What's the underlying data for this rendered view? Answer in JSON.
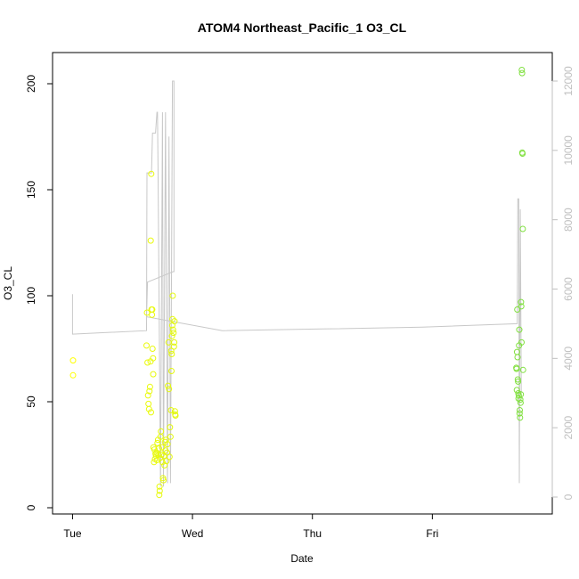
{
  "chart_data": {
    "type": "scatter",
    "title": "ATOM4 Northeast_Pacific_1 O3_CL",
    "xlabel": "Date",
    "ylabel": "O3_CL",
    "x_ticks": [
      "Tue",
      "Wed",
      "Thu",
      "Fri"
    ],
    "x_tick_values_hours": [
      0,
      24,
      48,
      72
    ],
    "xlim_hours": [
      -4,
      96
    ],
    "ylim": [
      0,
      206
    ],
    "y_ticks": [
      0,
      50,
      100,
      150,
      200
    ],
    "y2lim": [
      0,
      12000
    ],
    "y2_ticks": [
      0,
      2000,
      4000,
      6000,
      8000,
      10000,
      12000
    ],
    "grid": false,
    "legend": "none",
    "colors": {
      "points_start": "#ffff00",
      "points_end": "#80e040",
      "line": "#c8c8c8",
      "axis": "#000000",
      "right_axis": "#c0c0c0"
    },
    "series": [
      {
        "type": "scatter",
        "axis": "left",
        "points": [
          [
            0.1,
            69.5
          ],
          [
            0.1,
            62.5
          ],
          [
            14.8,
            76.5
          ],
          [
            14.9,
            92.0
          ],
          [
            15.0,
            68.5
          ],
          [
            15.1,
            53.0
          ],
          [
            15.2,
            49.0
          ],
          [
            15.3,
            46.5
          ],
          [
            15.4,
            55.0
          ],
          [
            15.5,
            57.0
          ],
          [
            15.6,
            69.0
          ],
          [
            15.65,
            126.0
          ],
          [
            15.7,
            45.0
          ],
          [
            15.75,
            157.5
          ],
          [
            15.8,
            93.5
          ],
          [
            15.9,
            91.0
          ],
          [
            15.95,
            93.5
          ],
          [
            16.0,
            75.0
          ],
          [
            16.1,
            70.5
          ],
          [
            16.15,
            63.0
          ],
          [
            16.2,
            28.5
          ],
          [
            16.3,
            21.5
          ],
          [
            16.4,
            27.5
          ],
          [
            16.5,
            23.0
          ],
          [
            16.6,
            25.5
          ],
          [
            16.7,
            24.5
          ],
          [
            16.8,
            26.0
          ],
          [
            16.9,
            22.5
          ],
          [
            17.0,
            30.5
          ],
          [
            17.1,
            32.0
          ],
          [
            17.2,
            25.0
          ],
          [
            17.3,
            28.0
          ],
          [
            17.35,
            6.0
          ],
          [
            17.4,
            10.0
          ],
          [
            17.45,
            8.0
          ],
          [
            17.5,
            23.5
          ],
          [
            17.6,
            33.5
          ],
          [
            17.7,
            36.0
          ],
          [
            17.8,
            25.0
          ],
          [
            17.9,
            28.5
          ],
          [
            18.0,
            21.5
          ],
          [
            18.1,
            14.0
          ],
          [
            18.2,
            13.0
          ],
          [
            18.3,
            24.5
          ],
          [
            18.4,
            20.0
          ],
          [
            18.5,
            31.0
          ],
          [
            18.6,
            27.0
          ],
          [
            18.7,
            32.0
          ],
          [
            18.8,
            22.0
          ],
          [
            18.9,
            26.0
          ],
          [
            19.0,
            30.0
          ],
          [
            19.1,
            57.5
          ],
          [
            19.2,
            78.0
          ],
          [
            19.3,
            56.0
          ],
          [
            19.4,
            24.0
          ],
          [
            19.5,
            38.0
          ],
          [
            19.6,
            33.5
          ],
          [
            19.7,
            46.0
          ],
          [
            19.75,
            74.0
          ],
          [
            19.8,
            64.5
          ],
          [
            19.85,
            72.5
          ],
          [
            19.9,
            81.0
          ],
          [
            19.95,
            86.0
          ],
          [
            20.0,
            89.0
          ],
          [
            20.05,
            100.0
          ],
          [
            20.1,
            84.0
          ],
          [
            20.2,
            82.5
          ],
          [
            20.3,
            76.0
          ],
          [
            20.35,
            78.0
          ],
          [
            20.4,
            88.0
          ],
          [
            20.5,
            45.5
          ],
          [
            20.55,
            44.0
          ],
          [
            20.6,
            43.5
          ],
          [
            88.8,
            66.0
          ],
          [
            88.85,
            65.5
          ],
          [
            88.9,
            55.5
          ],
          [
            88.95,
            73.5
          ],
          [
            89.0,
            93.5
          ],
          [
            89.05,
            71.0
          ],
          [
            89.1,
            60.5
          ],
          [
            89.15,
            59.5
          ],
          [
            89.2,
            54.0
          ],
          [
            89.25,
            51.5
          ],
          [
            89.3,
            53.0
          ],
          [
            89.35,
            76.5
          ],
          [
            89.4,
            84.0
          ],
          [
            89.45,
            44.5
          ],
          [
            89.5,
            46.0
          ],
          [
            89.55,
            42.5
          ],
          [
            89.6,
            51.0
          ],
          [
            89.65,
            49.5
          ],
          [
            89.7,
            53.5
          ],
          [
            89.75,
            97.0
          ],
          [
            89.8,
            95.0
          ],
          [
            89.85,
            78.0
          ],
          [
            89.9,
            206.5
          ],
          [
            89.95,
            205.0
          ],
          [
            90.0,
            167.5
          ],
          [
            90.05,
            167.0
          ],
          [
            90.1,
            131.5
          ],
          [
            90.15,
            65.0
          ]
        ]
      },
      {
        "type": "line",
        "axis": "right",
        "points": [
          [
            0.0,
            5850
          ],
          [
            0.0,
            4700
          ],
          [
            14.8,
            4800
          ],
          [
            14.9,
            9350
          ],
          [
            15.0,
            9350
          ],
          [
            15.7,
            9350
          ],
          [
            15.8,
            9350
          ],
          [
            16.0,
            10500
          ],
          [
            16.6,
            10500
          ],
          [
            16.9,
            11100
          ],
          [
            17.0,
            11100
          ],
          [
            17.1,
            9500
          ],
          [
            17.6,
            300
          ],
          [
            18.0,
            11100
          ],
          [
            18.2,
            300
          ],
          [
            18.6,
            11100
          ],
          [
            19.0,
            400
          ],
          [
            19.3,
            10400
          ],
          [
            19.6,
            400
          ],
          [
            20.0,
            12000
          ],
          [
            20.3,
            12000
          ],
          [
            20.3,
            6500
          ],
          [
            20.1,
            6500
          ],
          [
            15.0,
            6200
          ],
          [
            14.8,
            5200
          ],
          [
            30.0,
            4800
          ],
          [
            50.0,
            4850
          ],
          [
            70.0,
            4900
          ],
          [
            89.0,
            5000
          ],
          [
            89.1,
            8600
          ],
          [
            89.3,
            8600
          ],
          [
            89.4,
            400
          ],
          [
            89.6,
            8300
          ],
          [
            89.8,
            3000
          ]
        ]
      }
    ]
  }
}
